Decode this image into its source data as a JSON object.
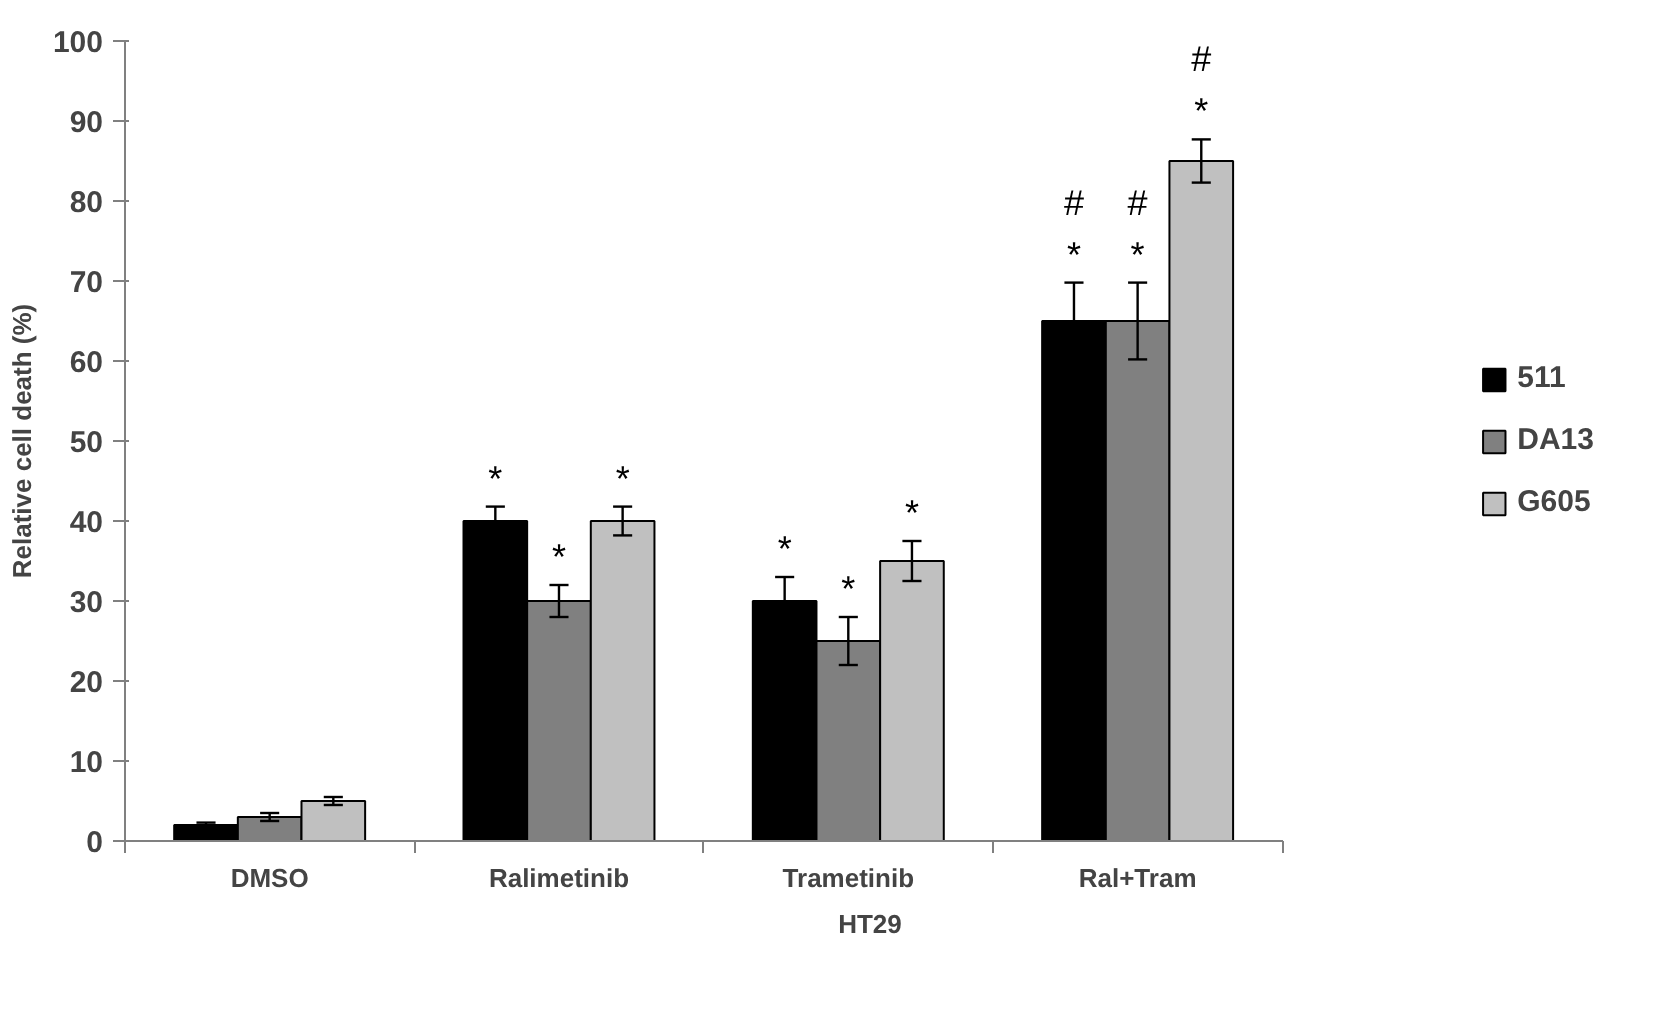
{
  "chart_data": {
    "type": "bar",
    "categories": [
      "DMSO",
      "Ralimetinib",
      "Trametinib",
      "Ral+Tram"
    ],
    "xlabel": "HT29",
    "ylabel": "Relative cell death (%)",
    "ylim": [
      0,
      100
    ],
    "yticks": [
      0,
      10,
      20,
      30,
      40,
      50,
      60,
      70,
      80,
      90,
      100
    ],
    "grid": false,
    "legend": "right",
    "series": [
      {
        "name": "511",
        "color": "#000000",
        "values": [
          2,
          40,
          30,
          65
        ],
        "errors": [
          0.3,
          1.8,
          3,
          4.8
        ],
        "value_labels": [
          null,
          "*",
          "*",
          "*\n#"
        ]
      },
      {
        "name": "DA13",
        "color": "#808080",
        "values": [
          3,
          30,
          25,
          65
        ],
        "errors": [
          0.5,
          2,
          3,
          4.8
        ],
        "value_labels": [
          null,
          "*",
          "*",
          "*\n#"
        ]
      },
      {
        "name": "G605",
        "color": "#c0c0c0",
        "values": [
          5,
          40,
          35,
          85
        ],
        "errors": [
          0.5,
          1.8,
          2.5,
          2.7
        ],
        "value_labels": [
          null,
          "*",
          "*",
          "*\n#"
        ]
      }
    ]
  }
}
